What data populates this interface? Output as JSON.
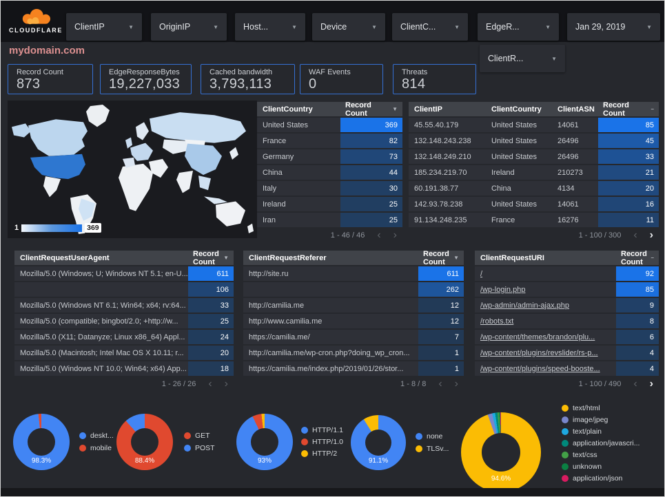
{
  "topbar": {
    "brand": "CLOUDFLARE",
    "filters": [
      {
        "label": "ClientIP"
      },
      {
        "label": "OriginIP"
      },
      {
        "label": "Host..."
      },
      {
        "label": "Device"
      },
      {
        "label": "ClientC..."
      },
      {
        "label": "EdgeR..."
      }
    ],
    "date": "Jan 29, 2019",
    "second_row_filter": "ClientR..."
  },
  "page_title": "mydomain.com",
  "scorecards": [
    {
      "label": "Record Count",
      "value": "873"
    },
    {
      "label": "EdgeResponseBytes",
      "value": "19,227,033"
    },
    {
      "label": "Cached bandwidth",
      "value": "3,793,113"
    },
    {
      "label": "WAF Events",
      "value": "0"
    },
    {
      "label": "Threats",
      "value": "814"
    }
  ],
  "map": {
    "legend_min": "1",
    "legend_max": "369"
  },
  "tables": {
    "client_country": {
      "headers": [
        "ClientCountry",
        "Record Count"
      ],
      "rows": [
        [
          "United States",
          369
        ],
        [
          "France",
          82
        ],
        [
          "Germany",
          73
        ],
        [
          "China",
          44
        ],
        [
          "Italy",
          30
        ],
        [
          "Ireland",
          25
        ],
        [
          "Iran",
          25
        ]
      ],
      "pagination": "1 - 46 / 46",
      "next_enabled": false
    },
    "client_ip": {
      "headers": [
        "ClientIP",
        "ClientCountry",
        "ClientASN",
        "Record Count"
      ],
      "rows": [
        [
          "45.55.40.179",
          "United States",
          "14061",
          85
        ],
        [
          "132.148.243.238",
          "United States",
          "26496",
          45
        ],
        [
          "132.148.249.210",
          "United States",
          "26496",
          33
        ],
        [
          "185.234.219.70",
          "Ireland",
          "210273",
          21
        ],
        [
          "60.191.38.77",
          "China",
          "4134",
          20
        ],
        [
          "142.93.78.238",
          "United States",
          "14061",
          16
        ],
        [
          "91.134.248.235",
          "France",
          "16276",
          11
        ]
      ],
      "pagination": "1 - 100 / 300",
      "next_enabled": true
    },
    "user_agent": {
      "headers": [
        "ClientRequestUserAgent",
        "Record Count"
      ],
      "rows": [
        [
          "Mozilla/5.0 (Windows; U; Windows NT 5.1; en-U...",
          611
        ],
        [
          "",
          106
        ],
        [
          "Mozilla/5.0 (Windows NT 6.1; Win64; x64; rv:64...",
          33
        ],
        [
          "Mozilla/5.0 (compatible; bingbot/2.0; +http://w...",
          25
        ],
        [
          "Mozilla/5.0 (X11; Datanyze; Linux x86_64) Appl...",
          24
        ],
        [
          "Mozilla/5.0 (Macintosh; Intel Mac OS X 10.11; r...",
          20
        ],
        [
          "Mozilla/5.0 (Windows NT 10.0; Win64; x64) App...",
          18
        ]
      ],
      "pagination": "1 - 26 / 26",
      "next_enabled": false
    },
    "referer": {
      "headers": [
        "ClientRequestReferer",
        "Record Count"
      ],
      "rows": [
        [
          "http://site.ru",
          611
        ],
        [
          "",
          262
        ],
        [
          "http://camilia.me",
          12
        ],
        [
          "http://www.camilia.me",
          12
        ],
        [
          "https://camilia.me/",
          7
        ],
        [
          "http://camilia.me/wp-cron.php?doing_wp_cron...",
          1
        ],
        [
          "https://camilia.me/index.php/2019/01/26/stor...",
          1
        ]
      ],
      "pagination": "1 - 8 / 8",
      "next_enabled": false
    },
    "uri": {
      "headers": [
        "ClientRequestURI",
        "Record Count"
      ],
      "rows": [
        [
          "/",
          92
        ],
        [
          "/wp-login.php",
          85
        ],
        [
          "/wp-admin/admin-ajax.php",
          9
        ],
        [
          "/robots.txt",
          8
        ],
        [
          "/wp-content/themes/brandon/plu...",
          6
        ],
        [
          "/wp-content/plugins/revslider/rs-p...",
          4
        ],
        [
          "/wp-content/plugins/speed-booste...",
          4
        ]
      ],
      "pagination": "1 - 100 / 490",
      "next_enabled": true,
      "links": true
    }
  },
  "colors": {
    "accent_blue": "#1a73e8",
    "heat_low": "#223852",
    "scorecard_border": "#3570d4",
    "title_pink": "#dc9090",
    "logo_orange": "#f6821f",
    "logo_light_orange": "#fbad41"
  },
  "chart_data": [
    {
      "type": "pie",
      "name": "device-category",
      "center_label": "98.3%",
      "slices": [
        {
          "label": "deskt...",
          "value": 98.3,
          "color": "#4285f4"
        },
        {
          "label": "mobile",
          "value": 1.7,
          "color": "#e0492f"
        }
      ]
    },
    {
      "type": "pie",
      "name": "http-method",
      "center_label": "88.4%",
      "slices": [
        {
          "label": "GET",
          "value": 88.4,
          "color": "#e0492f"
        },
        {
          "label": "POST",
          "value": 11.6,
          "color": "#4285f4"
        }
      ]
    },
    {
      "type": "pie",
      "name": "http-version",
      "center_label": "93%",
      "slices": [
        {
          "label": "HTTP/1.1",
          "value": 93,
          "color": "#4285f4"
        },
        {
          "label": "HTTP/1.0",
          "value": 5.2,
          "color": "#e0492f"
        },
        {
          "label": "HTTP/2",
          "value": 1.8,
          "color": "#fbbc04"
        }
      ]
    },
    {
      "type": "pie",
      "name": "tls-version",
      "center_label": "91.1%",
      "slices": [
        {
          "label": "none",
          "value": 91.1,
          "color": "#4285f4"
        },
        {
          "label": "TLSv...",
          "value": 8.9,
          "color": "#fbbc04"
        }
      ]
    },
    {
      "type": "pie",
      "name": "content-type",
      "center_label": "94.6%",
      "slices": [
        {
          "label": "text/html",
          "value": 94.6,
          "color": "#fbbc04"
        },
        {
          "label": "image/jpeg",
          "value": 1.8,
          "color": "#7986cb"
        },
        {
          "label": "text/plain",
          "value": 1.2,
          "color": "#1ea8e0"
        },
        {
          "label": "application/javascri...",
          "value": 1.0,
          "color": "#00897b"
        },
        {
          "label": "text/css",
          "value": 0.7,
          "color": "#43a047"
        },
        {
          "label": "unknown",
          "value": 0.4,
          "color": "#0b8043"
        },
        {
          "label": "application/json",
          "value": 0.3,
          "color": "#d81b60"
        }
      ]
    }
  ]
}
